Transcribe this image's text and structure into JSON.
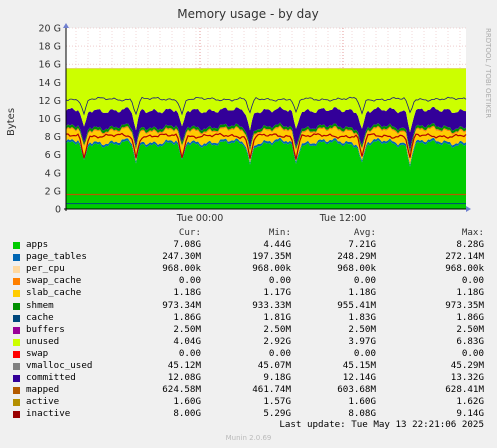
{
  "chart_data": {
    "type": "area",
    "title": "Memory usage - by day",
    "ylabel": "Bytes",
    "side_text": "RRDTOOL / TOBI OETIKER",
    "ylim": [
      0,
      20
    ],
    "y_unit": "G",
    "y_ticks": [
      "0",
      "2 G",
      "4 G",
      "6 G",
      "8 G",
      "10 G",
      "12 G",
      "14 G",
      "16 G",
      "18 G",
      "20 G"
    ],
    "x_ticks": [
      "Tue 00:00",
      "Tue 12:00"
    ],
    "grid": true,
    "series": [
      {
        "name": "apps",
        "color": "#00cc00",
        "avg_g": 7.21
      },
      {
        "name": "page_tables",
        "color": "#0066b3",
        "avg_g": 0.25
      },
      {
        "name": "per_cpu",
        "color": "#ff8000",
        "avg_g": 0.001
      },
      {
        "name": "swap_cache",
        "color": "#ffcc00",
        "avg_g": 0.0
      },
      {
        "name": "slab_cache",
        "color": "#ffcc00",
        "avg_g": 1.18
      },
      {
        "name": "shmem",
        "color": "#008f00",
        "avg_g": 0.96
      },
      {
        "name": "cache",
        "color": "#330099",
        "avg_g": 1.83
      },
      {
        "name": "buffers",
        "color": "#990099",
        "avg_g": 0.0025
      },
      {
        "name": "unused",
        "color": "#ccff00",
        "avg_g": 3.97
      },
      {
        "name": "swap",
        "color": "#ff0000",
        "avg_g": 0.0
      },
      {
        "name": "vmalloc_used",
        "color": "#808080",
        "avg_g": 0.045
      },
      {
        "name": "committed",
        "color": "#008f00",
        "avg_g": 12.14
      },
      {
        "name": "mapped",
        "color": "#00487d",
        "avg_g": 0.6
      },
      {
        "name": "active",
        "color": "#b35a00",
        "avg_g": 1.6
      },
      {
        "name": "inactive",
        "color": "#b38f00",
        "avg_g": 8.08
      }
    ]
  },
  "legend": {
    "headers": {
      "cur": "Cur:",
      "min": "Min:",
      "avg": "Avg:",
      "max": "Max:"
    },
    "rows": [
      {
        "name": "apps",
        "color": "#00cc00",
        "cur": "7.08G",
        "min": "4.44G",
        "avg": "7.21G",
        "max": "8.28G"
      },
      {
        "name": "page_tables",
        "color": "#0066b3",
        "cur": "247.30M",
        "min": "197.35M",
        "avg": "248.29M",
        "max": "272.14M"
      },
      {
        "name": "per_cpu",
        "color": "#ffd9a0",
        "cur": "968.00k",
        "min": "968.00k",
        "avg": "968.00k",
        "max": "968.00k"
      },
      {
        "name": "swap_cache",
        "color": "#ff8000",
        "cur": "0.00",
        "min": "0.00",
        "avg": "0.00",
        "max": "0.00"
      },
      {
        "name": "slab_cache",
        "color": "#ffcc00",
        "cur": "1.18G",
        "min": "1.17G",
        "avg": "1.18G",
        "max": "1.18G"
      },
      {
        "name": "shmem",
        "color": "#008f00",
        "cur": "973.34M",
        "min": "933.33M",
        "avg": "955.41M",
        "max": "973.35M"
      },
      {
        "name": "cache",
        "color": "#00487d",
        "cur": "1.86G",
        "min": "1.81G",
        "avg": "1.83G",
        "max": "1.86G"
      },
      {
        "name": "buffers",
        "color": "#990099",
        "cur": "2.50M",
        "min": "2.50M",
        "avg": "2.50M",
        "max": "2.50M"
      },
      {
        "name": "unused",
        "color": "#ccff00",
        "cur": "4.04G",
        "min": "2.92G",
        "avg": "3.97G",
        "max": "6.83G"
      },
      {
        "name": "swap",
        "color": "#ff0000",
        "cur": "0.00",
        "min": "0.00",
        "avg": "0.00",
        "max": "0.00"
      },
      {
        "name": "vmalloc_used",
        "color": "#808080",
        "cur": "45.12M",
        "min": "45.07M",
        "avg": "45.15M",
        "max": "45.29M"
      },
      {
        "name": "committed",
        "color": "#330099",
        "cur": "12.08G",
        "min": "9.18G",
        "avg": "12.14G",
        "max": "13.32G"
      },
      {
        "name": "mapped",
        "color": "#b35a00",
        "cur": "624.58M",
        "min": "461.74M",
        "avg": "603.68M",
        "max": "628.41M"
      },
      {
        "name": "active",
        "color": "#b38f00",
        "cur": "1.60G",
        "min": "1.57G",
        "avg": "1.60G",
        "max": "1.62G"
      },
      {
        "name": "inactive",
        "color": "#990000",
        "cur": "8.00G",
        "min": "5.29G",
        "avg": "8.08G",
        "max": "9.14G"
      }
    ]
  },
  "footer": {
    "last_update": "Last update: Tue May 13 22:21:06 2025",
    "version": "Munin 2.0.69"
  }
}
